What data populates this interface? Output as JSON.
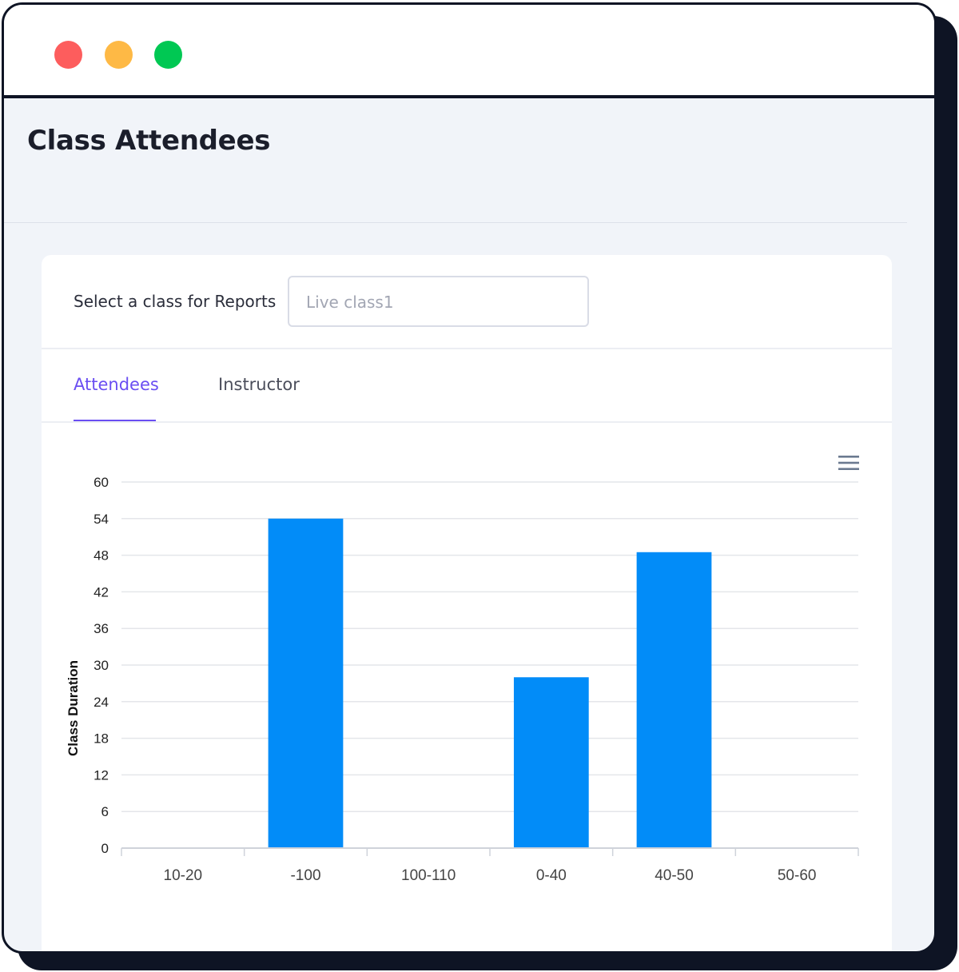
{
  "window": {
    "buttons": [
      "close",
      "minimize",
      "maximize"
    ]
  },
  "page": {
    "title": "Class Attendees"
  },
  "report_selector": {
    "label": "Select a class for Reports",
    "value": "Live class1"
  },
  "tabs": [
    {
      "label": "Attendees",
      "active": true
    },
    {
      "label": "Instructor",
      "active": false
    }
  ],
  "chart_menu": {
    "icon": "hamburger-menu-icon"
  },
  "colors": {
    "accent": "#6a4ef2",
    "bar": "#028cf8",
    "close": "#fd5d5d",
    "minimize": "#feb945",
    "maximize": "#00c853"
  },
  "chart_data": {
    "type": "bar",
    "ylabel": "Class Duration",
    "xlabel": "",
    "ylim": [
      0,
      60
    ],
    "yticks": [
      "0",
      "6",
      "12",
      "18",
      "24",
      "30",
      "36",
      "42",
      "48",
      "54",
      "60"
    ],
    "categories": [
      "10-20",
      "-100",
      "100-110",
      "0-40",
      "40-50",
      "50-60"
    ],
    "values": [
      0,
      54,
      0,
      28,
      48.5,
      0
    ],
    "grid": true
  }
}
